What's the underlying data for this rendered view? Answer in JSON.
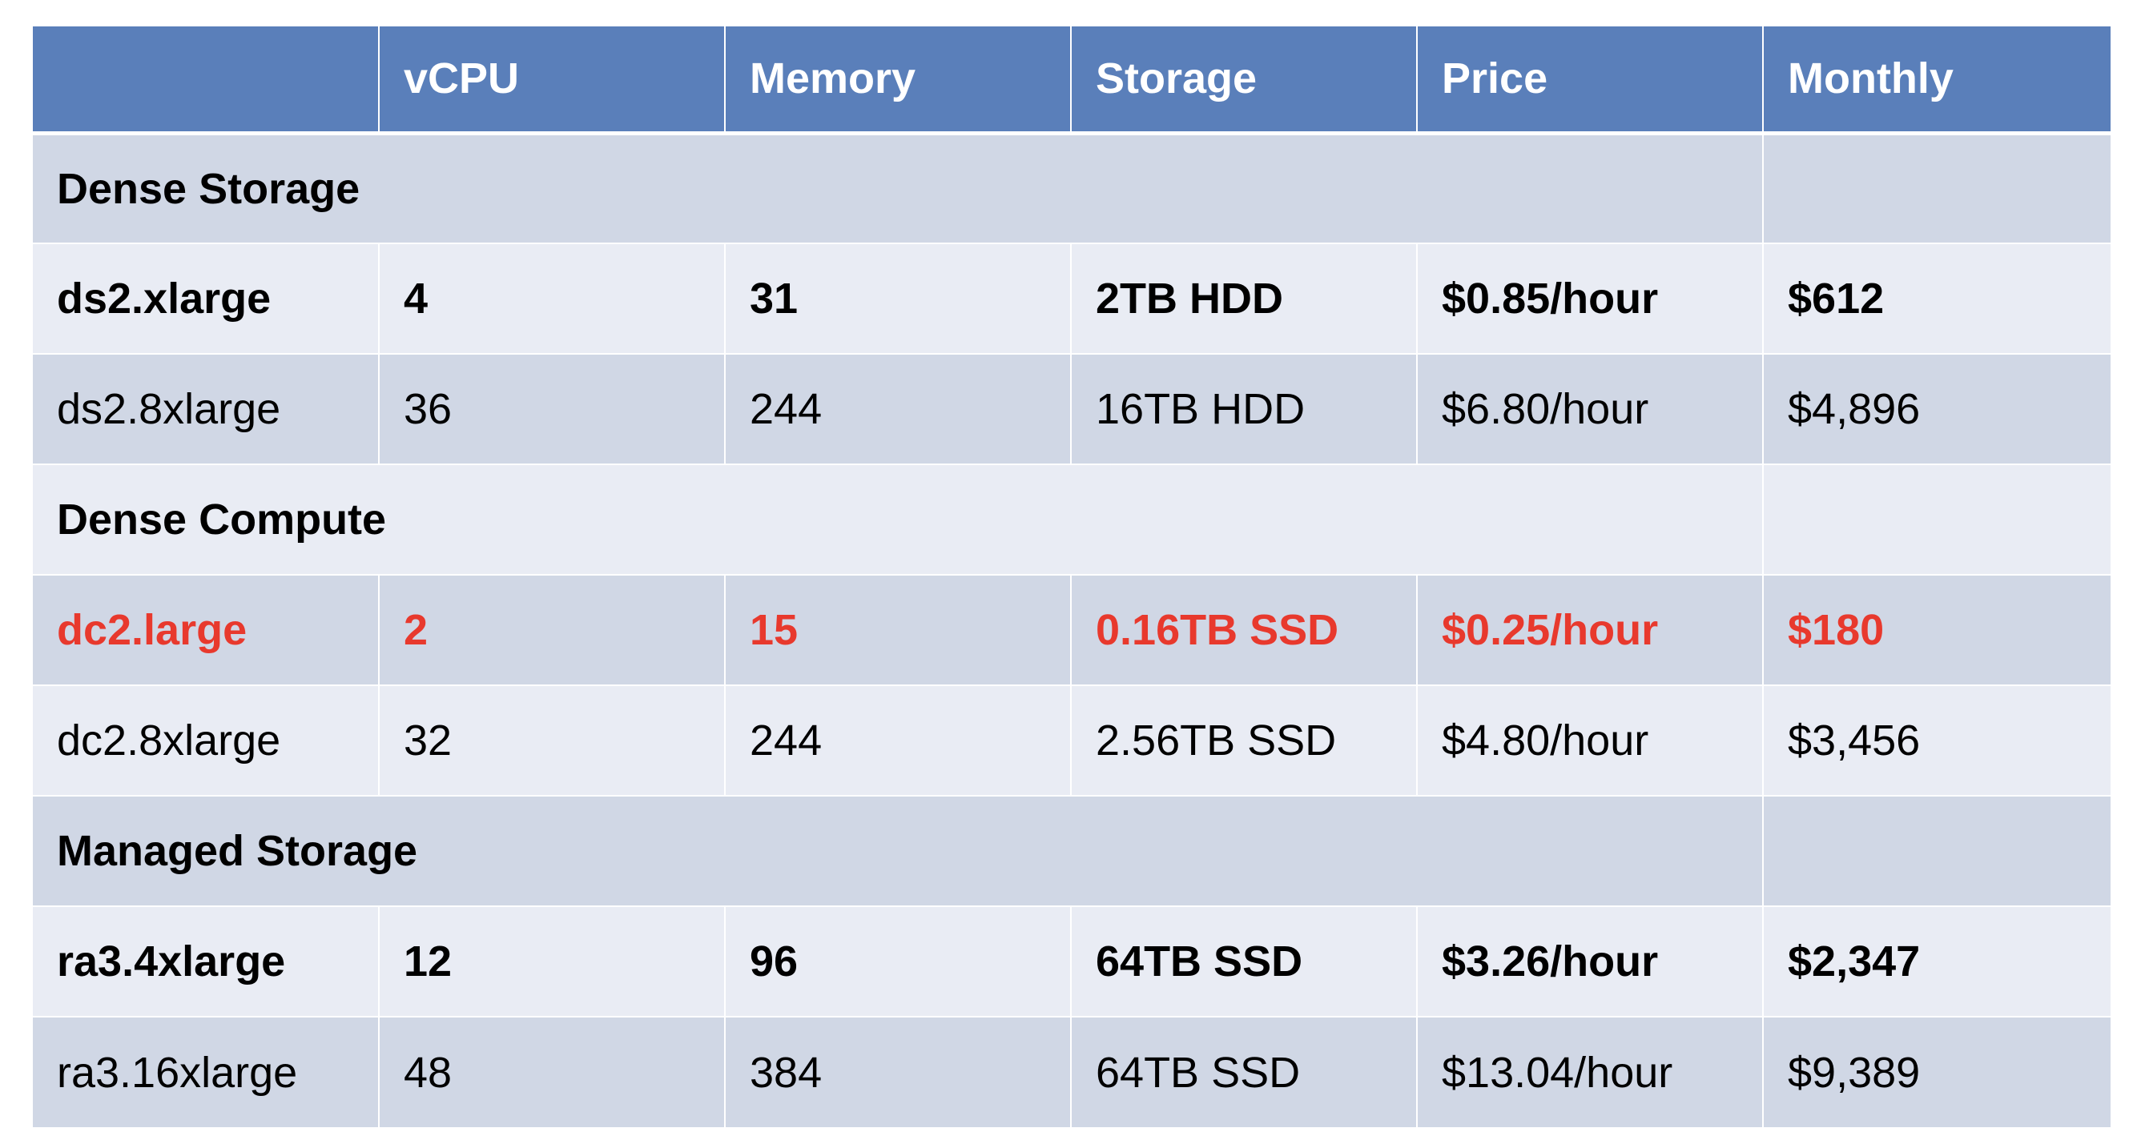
{
  "table": {
    "headers": [
      "",
      "vCPU",
      "Memory",
      "Storage",
      "Price",
      "Monthly"
    ],
    "groups": [
      {
        "label": "Dense Storage",
        "rows": [
          {
            "name": "ds2.xlarge",
            "vcpu": "4",
            "memory": "31",
            "storage": "2TB HDD",
            "price": "$0.85/hour",
            "monthly": "$612"
          },
          {
            "name": "ds2.8xlarge",
            "vcpu": "36",
            "memory": "244",
            "storage": "16TB HDD",
            "price": "$6.80/hour",
            "monthly": "$4,896"
          }
        ]
      },
      {
        "label": "Dense Compute",
        "rows": [
          {
            "name": "dc2.large",
            "vcpu": "2",
            "memory": "15",
            "storage": "0.16TB SSD",
            "price": "$0.25/hour",
            "monthly": "$180"
          },
          {
            "name": "dc2.8xlarge",
            "vcpu": "32",
            "memory": "244",
            "storage": "2.56TB SSD",
            "price": "$4.80/hour",
            "monthly": "$3,456"
          }
        ]
      },
      {
        "label": "Managed Storage",
        "rows": [
          {
            "name": "ra3.4xlarge",
            "vcpu": "12",
            "memory": "96",
            "storage": "64TB SSD",
            "price": "$3.26/hour",
            "monthly": "$2,347"
          },
          {
            "name": "ra3.16xlarge",
            "vcpu": "48",
            "memory": "384",
            "storage": "64TB SSD",
            "price": "$13.04/hour",
            "monthly": "$9,389"
          }
        ]
      }
    ]
  },
  "colors": {
    "header_bg": "#5a7fba",
    "row_dark": "#d0d7e5",
    "row_light": "#e9ecf4",
    "highlight_text": "#e8392d"
  }
}
